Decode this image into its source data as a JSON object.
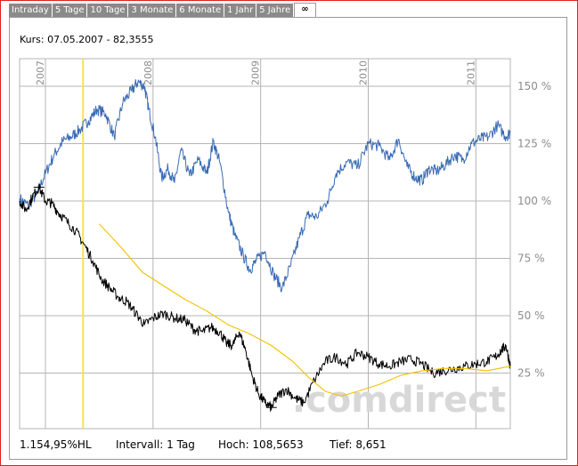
{
  "tabs": [
    {
      "label": "Intraday"
    },
    {
      "label": "5 Tage"
    },
    {
      "label": "10 Tage"
    },
    {
      "label": "3 Monate"
    },
    {
      "label": "6 Monate"
    },
    {
      "label": "1 Jahr"
    },
    {
      "label": "5 Jahre"
    },
    {
      "label": "∞"
    }
  ],
  "active_tab": 7,
  "price_line": "Kurs: 07.05.2007 - 82,3555",
  "watermark": ".comdirect",
  "footer": {
    "change": "1.154,95%HL",
    "interval": "Intervall: 1 Tag",
    "high": "Hoch: 108,5653",
    "low": "Tief:  8,651"
  },
  "colors": {
    "blue_series": "#3a6bb5",
    "black_series": "#000000",
    "average": "#f2c200",
    "cursor": "#f5e15a",
    "grid": "#b4b4b4",
    "frame": "#e0211d"
  },
  "chart_data": {
    "type": "line",
    "xlabel": "",
    "ylabel": "",
    "x_ticks": [
      "2007",
      "2008",
      "2009",
      "2010",
      "2011"
    ],
    "y_ticks": [
      "150 %",
      "125 %",
      "100 %",
      "75 %",
      "50 %",
      "25 %"
    ],
    "ylim": [
      0,
      160
    ],
    "xlim": [
      2006.76,
      2011.32
    ],
    "cursor_x": 2007.35,
    "grid": true,
    "series": [
      {
        "color": "#3a6bb5",
        "x": [
          2006.76,
          2006.84,
          2006.92,
          2007.0,
          2007.08,
          2007.16,
          2007.24,
          2007.32,
          2007.4,
          2007.48,
          2007.56,
          2007.64,
          2007.72,
          2007.8,
          2007.86,
          2007.92,
          2007.96,
          2008.02,
          2008.08,
          2008.14,
          2008.2,
          2008.26,
          2008.34,
          2008.42,
          2008.5,
          2008.56,
          2008.62,
          2008.7,
          2008.76,
          2008.84,
          2008.9,
          2008.96,
          2009.04,
          2009.12,
          2009.2,
          2009.28,
          2009.36,
          2009.44,
          2009.52,
          2009.62,
          2009.7,
          2009.8,
          2009.9,
          2010.0,
          2010.1,
          2010.2,
          2010.28,
          2010.36,
          2010.44,
          2010.5,
          2010.56,
          2010.64,
          2010.72,
          2010.8,
          2010.88,
          2010.96,
          2011.04,
          2011.12,
          2011.2,
          2011.28,
          2011.32
        ],
        "y": [
          101,
          98,
          103,
          112,
          120,
          126,
          128,
          131,
          135,
          140,
          138,
          128,
          143,
          148,
          152,
          150,
          140,
          128,
          110,
          114,
          108,
          122,
          111,
          118,
          112,
          126,
          117,
          95,
          85,
          76,
          70,
          74,
          78,
          68,
          62,
          72,
          84,
          94,
          93,
          100,
          112,
          117,
          115,
          125,
          124,
          118,
          127,
          115,
          110,
          109,
          114,
          113,
          116,
          120,
          118,
          125,
          127,
          128,
          133,
          128,
          130
        ]
      },
      {
        "color": "#000000",
        "x": [
          2006.76,
          2006.82,
          2006.88,
          2006.94,
          2007.0,
          2007.06,
          2007.12,
          2007.2,
          2007.28,
          2007.36,
          2007.44,
          2007.52,
          2007.6,
          2007.68,
          2007.76,
          2007.84,
          2007.92,
          2008.0,
          2008.1,
          2008.2,
          2008.3,
          2008.38,
          2008.46,
          2008.54,
          2008.62,
          2008.68,
          2008.74,
          2008.8,
          2008.86,
          2008.92,
          2008.98,
          2009.04,
          2009.1,
          2009.16,
          2009.24,
          2009.32,
          2009.4,
          2009.5,
          2009.6,
          2009.7,
          2009.8,
          2009.9,
          2010.0,
          2010.1,
          2010.2,
          2010.3,
          2010.4,
          2010.5,
          2010.6,
          2010.7,
          2010.8,
          2010.9,
          2011.0,
          2011.1,
          2011.18,
          2011.24,
          2011.28,
          2011.32
        ],
        "y": [
          100,
          96,
          102,
          106,
          100,
          99,
          95,
          91,
          87,
          81,
          74,
          66,
          62,
          58,
          56,
          51,
          46,
          49,
          51,
          49,
          48,
          44,
          43,
          45,
          43,
          38,
          37,
          43,
          35,
          24,
          16,
          12,
          10,
          15,
          18,
          14,
          12,
          22,
          30,
          32,
          29,
          34,
          32,
          29,
          28,
          30,
          31,
          29,
          25,
          26,
          27,
          28,
          29,
          30,
          32,
          35,
          37,
          28
        ]
      },
      {
        "color": "#f2c200",
        "x": [
          2007.5,
          2007.7,
          2007.9,
          2008.1,
          2008.3,
          2008.5,
          2008.7,
          2008.9,
          2009.1,
          2009.3,
          2009.45,
          2009.6,
          2009.75,
          2009.9,
          2010.1,
          2010.3,
          2010.5,
          2010.7,
          2010.9,
          2011.1,
          2011.32
        ],
        "y": [
          90,
          80,
          69,
          63,
          57,
          52,
          46,
          42,
          37,
          30,
          23,
          17,
          15,
          17,
          20,
          24,
          26,
          27,
          27,
          26,
          28
        ]
      }
    ]
  }
}
